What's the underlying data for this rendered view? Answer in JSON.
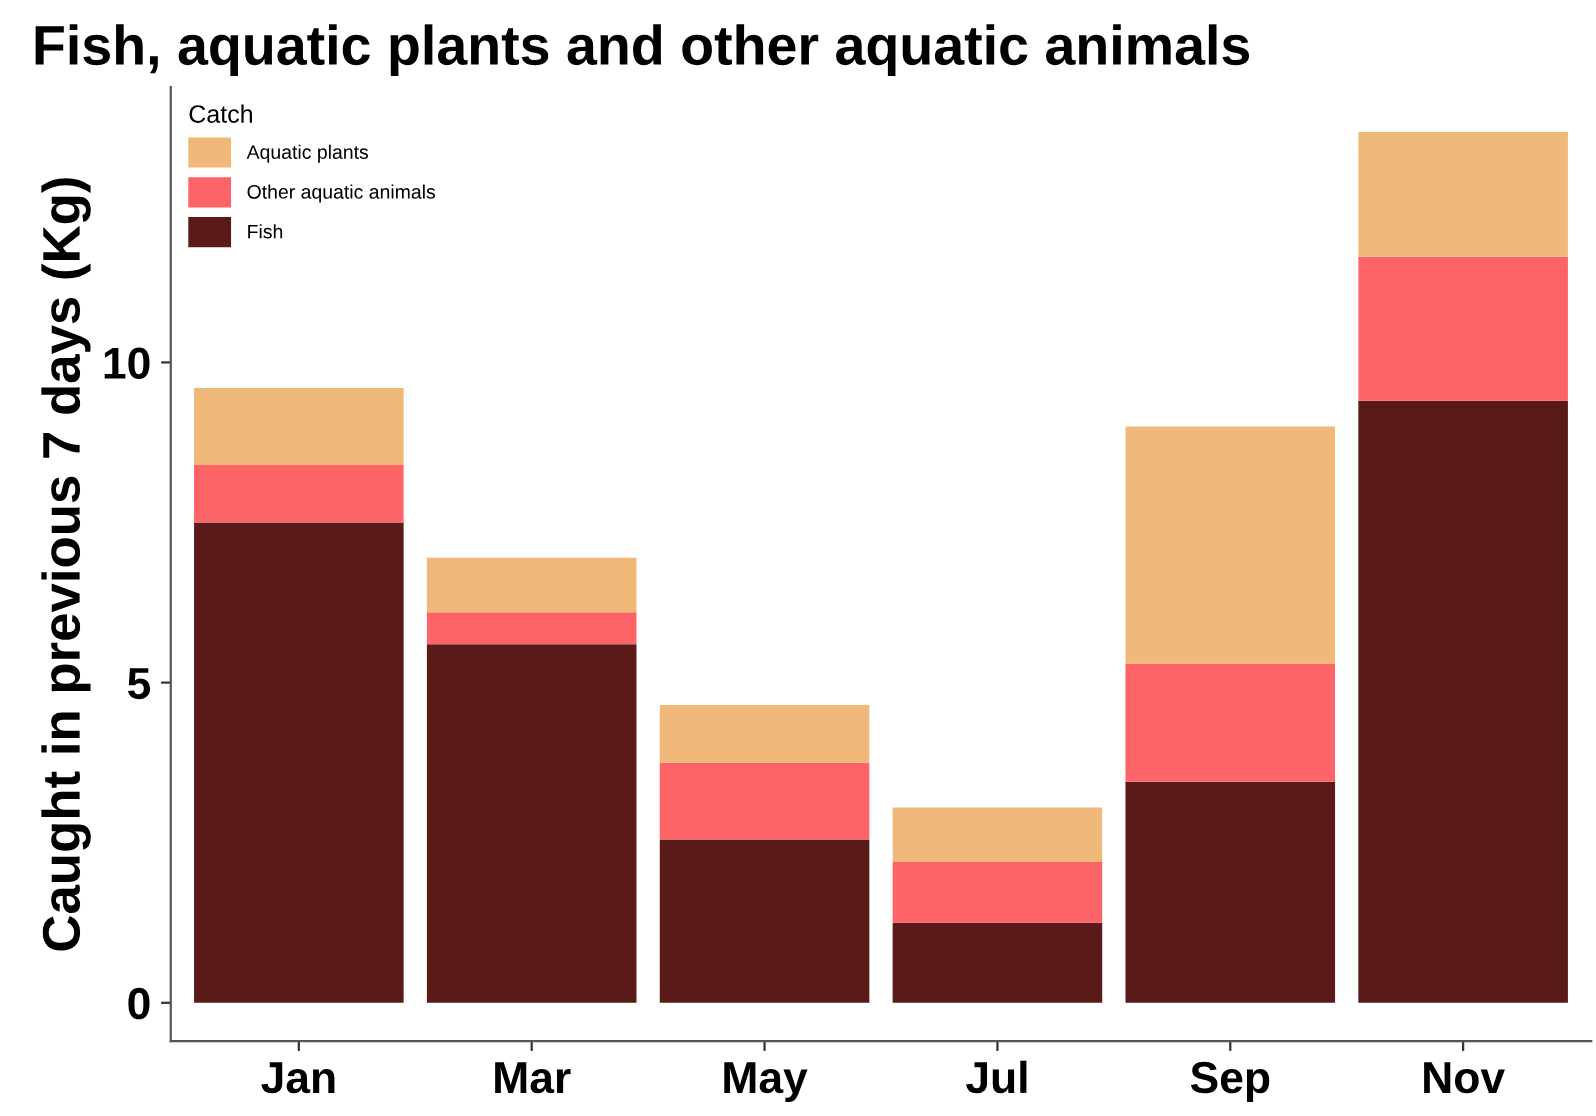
{
  "chart_data": {
    "type": "bar",
    "stacked": true,
    "title": "Fish, aquatic plants and other aquatic animals",
    "ylabel": "Caught in previous 7 days (Kg)",
    "legend_title": "Catch",
    "legend": "top left",
    "grid": false,
    "categories": [
      "Jan",
      "Mar",
      "May",
      "Jul",
      "Sep",
      "Nov"
    ],
    "ylim": [
      -0.6,
      14.3
    ],
    "yticks": [
      0,
      5,
      10
    ],
    "series": [
      {
        "name": "Fish",
        "color": "#5a1a18",
        "values": [
          7.5,
          5.6,
          2.55,
          1.25,
          3.45,
          9.4
        ]
      },
      {
        "name": "Other aquatic animals",
        "color": "#fc6468",
        "values": [
          0.9,
          0.5,
          1.2,
          0.95,
          1.85,
          2.25
        ]
      },
      {
        "name": "Aquatic plants",
        "color": "#f0b97a",
        "values": [
          1.2,
          0.85,
          0.9,
          0.85,
          3.7,
          1.95
        ]
      }
    ]
  }
}
